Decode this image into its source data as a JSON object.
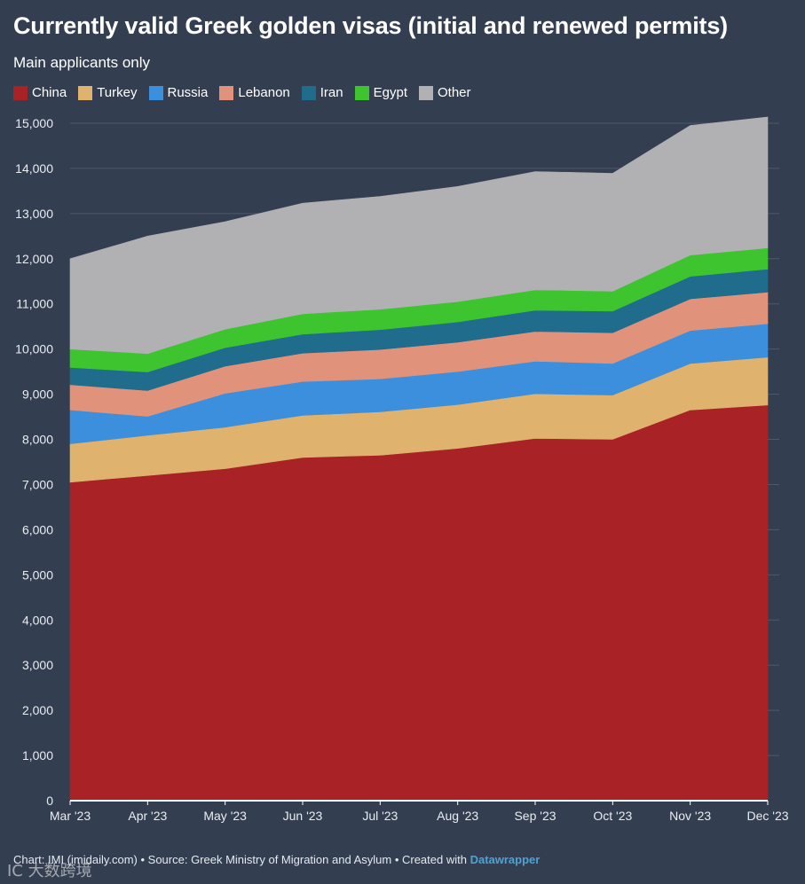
{
  "header": {
    "title": "Currently valid Greek golden visas (initial and renewed permits)",
    "subtitle": "Main applicants only"
  },
  "footer": {
    "prefix": "Chart: IMI (imidaily.com) • Source: Greek Ministry of Migration and Asylum • Created with ",
    "brand": "Datawrapper"
  },
  "watermark": "IC  大数跨境",
  "chart_data": {
    "type": "area",
    "stacked": true,
    "title": "Currently valid Greek golden visas (initial and renewed permits)",
    "subtitle": "Main applicants only",
    "categories": [
      "Mar '23",
      "Apr '23",
      "May '23",
      "Jun '23",
      "Jul '23",
      "Aug '23",
      "Sep '23",
      "Oct '23",
      "Nov '23",
      "Dec '23"
    ],
    "ylim": [
      0,
      15000
    ],
    "yticks": [
      0,
      1000,
      2000,
      3000,
      4000,
      5000,
      6000,
      7000,
      8000,
      9000,
      10000,
      11000,
      12000,
      13000,
      14000,
      15000
    ],
    "ytick_labels": [
      "0",
      "1,000",
      "2,000",
      "3,000",
      "4,000",
      "5,000",
      "6,000",
      "7,000",
      "8,000",
      "9,000",
      "10,000",
      "11,000",
      "12,000",
      "13,000",
      "14,000",
      "15,000"
    ],
    "legend_position": "top-left",
    "series": [
      {
        "name": "China",
        "color": "#a82226",
        "values": [
          7050,
          7200,
          7350,
          7600,
          7650,
          7800,
          8020,
          8000,
          8650,
          8760
        ]
      },
      {
        "name": "Turkey",
        "color": "#dfb26e",
        "values": [
          850,
          890,
          920,
          930,
          960,
          970,
          990,
          980,
          1030,
          1060
        ]
      },
      {
        "name": "Russia",
        "color": "#3b8fdc",
        "values": [
          750,
          420,
          750,
          750,
          730,
          730,
          720,
          700,
          730,
          740
        ]
      },
      {
        "name": "Lebanon",
        "color": "#e0937a",
        "values": [
          560,
          570,
          600,
          630,
          650,
          650,
          660,
          680,
          700,
          700
        ]
      },
      {
        "name": "Iran",
        "color": "#1f6c8c",
        "values": [
          380,
          410,
          410,
          420,
          440,
          450,
          470,
          480,
          500,
          510
        ]
      },
      {
        "name": "Egypt",
        "color": "#3dc42f",
        "values": [
          410,
          410,
          410,
          450,
          450,
          450,
          450,
          440,
          470,
          470
        ]
      },
      {
        "name": "Other",
        "color": "#b1b1b4",
        "values": [
          2000,
          2600,
          2380,
          2450,
          2500,
          2550,
          2620,
          2610,
          2870,
          2900
        ]
      }
    ]
  }
}
